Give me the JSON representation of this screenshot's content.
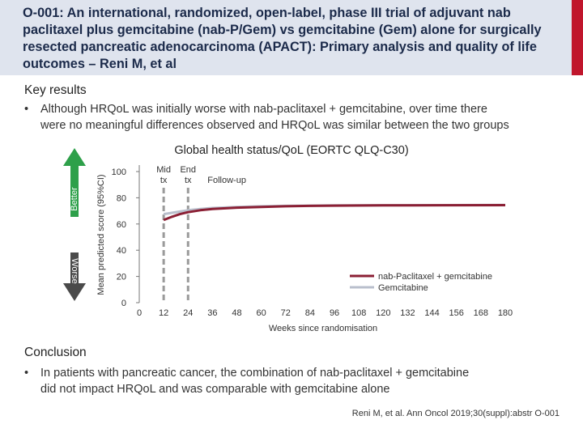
{
  "header": {
    "title": "O-001: An international, randomized, open-label, phase III trial of adjuvant nab paclitaxel plus gemcitabine (nab-P/Gem) vs gemcitabine (Gem) alone for surgically resected pancreatic adenocarcinoma (APACT): Primary analysis and quality of life outcomes – Reni M, et al"
  },
  "key_results": {
    "heading": "Key results",
    "bullet_line1": "Although HRQoL was initially worse with nab-paclitaxel + gemcitabine, over time there",
    "bullet_line2": "were no meaningful differences observed and HRQoL was similar between the two groups"
  },
  "conclusion": {
    "heading": "Conclusion",
    "bullet_line1": "In patients with pancreatic cancer, the combination of nab-paclitaxel + gemcitabine",
    "bullet_line2": "did not impact HRQoL and was comparable with gemcitabine alone"
  },
  "citation": "Reni M, et al. Ann Oncol 2019;30(suppl):abstr O-001",
  "colors": {
    "nab_series": "#8b1f34",
    "gem_series": "#b9bfcc",
    "better_arrow": "#2ea04a",
    "worse_arrow": "#4a4a4a",
    "header_bg": "#dfe4ee",
    "accent": "#c0162c"
  },
  "chart_data": {
    "type": "line",
    "title": "Global health status/QoL (EORTC QLQ-C30)",
    "xlabel": "Weeks since randomisation",
    "ylabel": "Mean predicted score (95%CI)",
    "xlim": [
      0,
      180
    ],
    "ylim": [
      0,
      100
    ],
    "x_ticks": [
      0,
      12,
      24,
      36,
      48,
      60,
      72,
      84,
      96,
      108,
      120,
      132,
      144,
      156,
      168,
      180
    ],
    "y_ticks": [
      0,
      20,
      40,
      60,
      80,
      100
    ],
    "grid": false,
    "legend_position": "bottom-right",
    "direction_labels": {
      "better": "Better",
      "worse": "Worse"
    },
    "phase_markers": [
      {
        "x": 12,
        "label_line1": "Mid",
        "label_line2": "tx"
      },
      {
        "x": 24,
        "label_line1": "End",
        "label_line2": "tx"
      }
    ],
    "follow_up_label": "Follow-up",
    "series": [
      {
        "name": "nab-Paclitaxel + gemcitabine",
        "x": [
          12,
          16,
          20,
          24,
          30,
          36,
          48,
          60,
          72,
          84,
          96,
          120,
          150,
          180
        ],
        "values": [
          63,
          65.5,
          67.5,
          69,
          70.5,
          71.5,
          72.5,
          73,
          73.5,
          73.8,
          74,
          74.2,
          74.3,
          74.4
        ]
      },
      {
        "name": "Gemcitabine",
        "x": [
          12,
          16,
          20,
          24,
          30,
          36,
          48,
          60,
          72,
          84,
          96,
          120,
          150,
          180
        ],
        "values": [
          67.5,
          68.5,
          69.5,
          70.5,
          71.5,
          72.2,
          73,
          73.5,
          73.8,
          74,
          74.2,
          74.3,
          74.4,
          74.5
        ]
      }
    ]
  }
}
